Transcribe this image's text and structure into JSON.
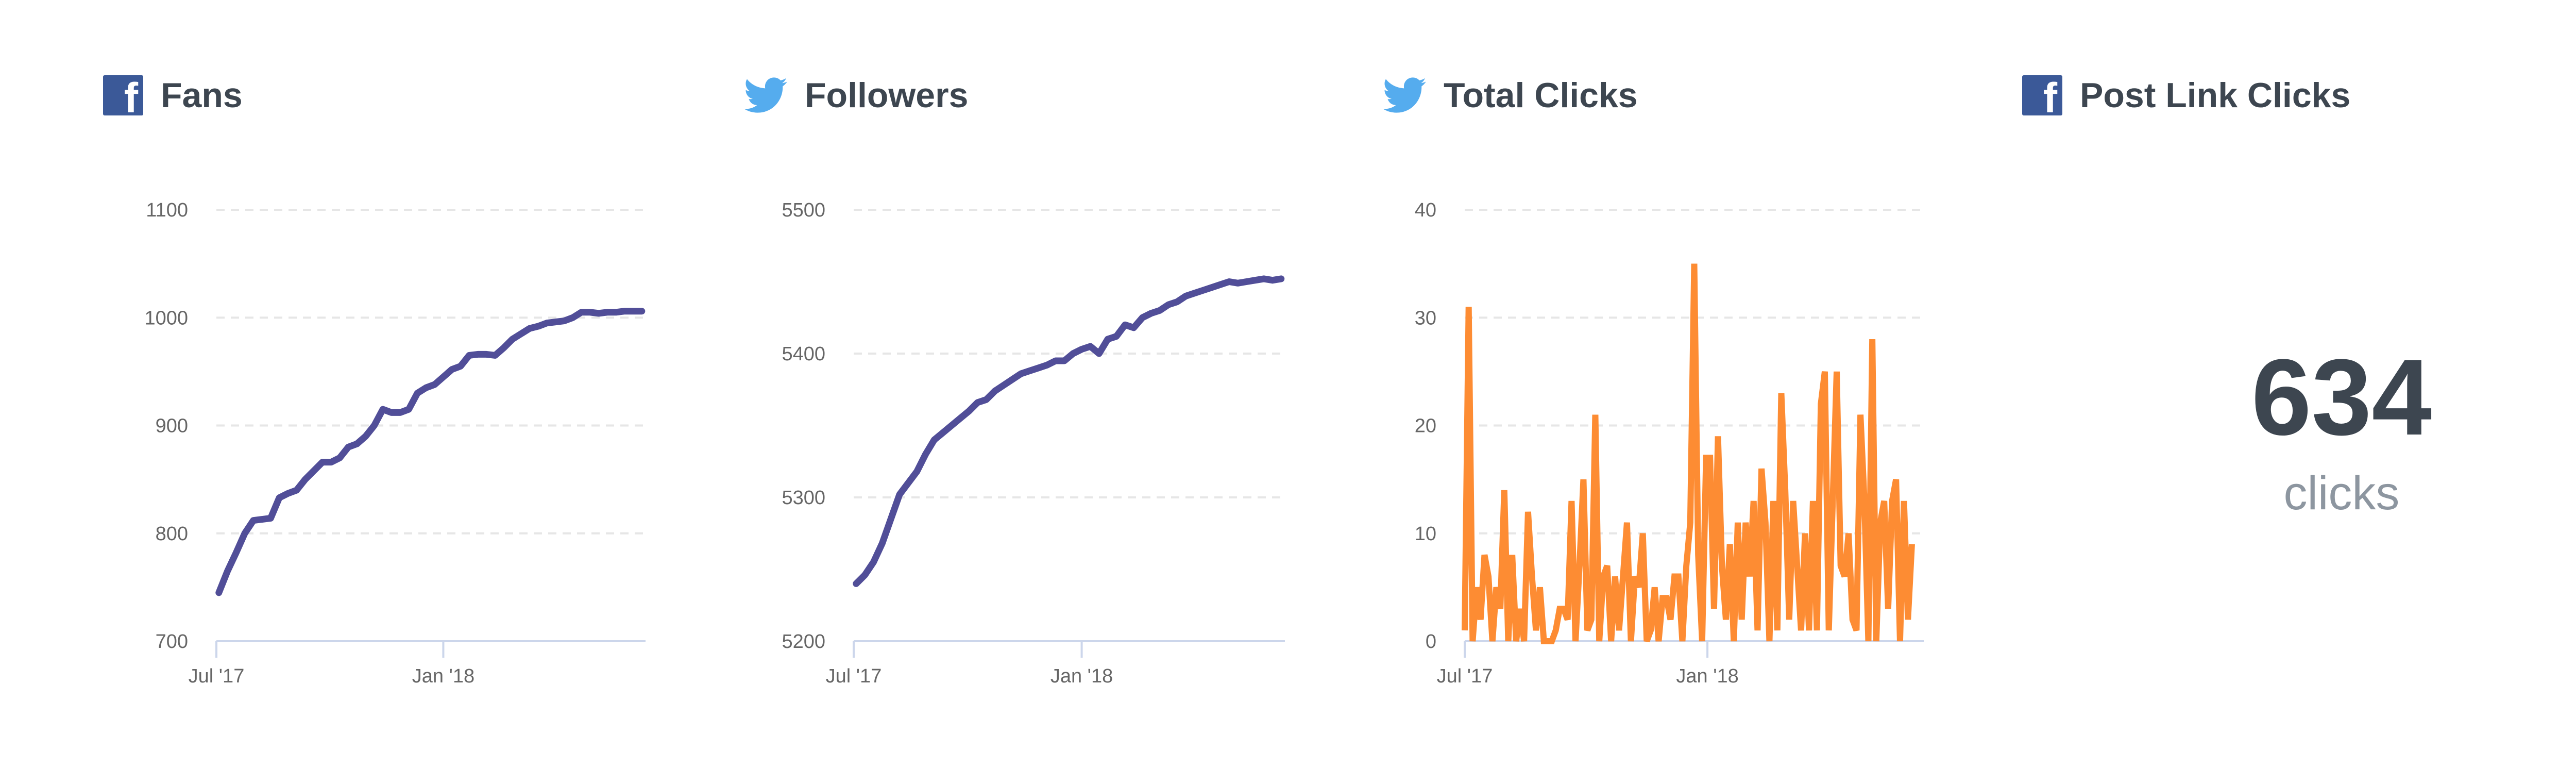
{
  "colors": {
    "facebook": "#3b5998",
    "twitter": "#55acee",
    "line": "#514e98",
    "clicks": "#fd8c33",
    "grid": "#e6e6e6",
    "axis": "#ccd6eb",
    "tick_text": "#666666"
  },
  "panels": [
    {
      "title": "Fans",
      "icon": "facebook-icon"
    },
    {
      "title": "Followers",
      "icon": "twitter-icon"
    },
    {
      "title": "Total Clicks",
      "icon": "twitter-icon"
    },
    {
      "title": "Post Link Clicks",
      "icon": "facebook-icon"
    }
  ],
  "post_link_clicks": {
    "value": "634",
    "unit": "clicks"
  },
  "chart_data": [
    {
      "type": "line",
      "x_start": "2017-07-03",
      "x_step_days": 7,
      "xticks": [
        "Jul '17",
        "Jan '18"
      ],
      "ylim": [
        700,
        1100
      ],
      "yticks": [
        700,
        800,
        900,
        1000,
        1100
      ],
      "grid": true,
      "values": [
        745,
        765,
        782,
        800,
        812,
        813,
        814,
        833,
        837,
        840,
        850,
        858,
        866,
        866,
        870,
        880,
        883,
        890,
        900,
        915,
        912,
        912,
        915,
        930,
        935,
        938,
        945,
        952,
        955,
        965,
        966,
        966,
        965,
        972,
        980,
        985,
        990,
        992,
        995,
        996,
        997,
        1000,
        1005,
        1005,
        1004,
        1005,
        1005,
        1006,
        1006,
        1006
      ]
    },
    {
      "type": "line",
      "x_start": "2017-07-03",
      "x_step_days": 7,
      "xticks": [
        "Jul '17",
        "Jan '18"
      ],
      "ylim": [
        5200,
        5500
      ],
      "yticks": [
        5200,
        5300,
        5400,
        5500
      ],
      "grid": true,
      "values": [
        5240,
        5246,
        5255,
        5268,
        5285,
        5302,
        5310,
        5318,
        5330,
        5340,
        5345,
        5350,
        5355,
        5360,
        5366,
        5368,
        5374,
        5378,
        5382,
        5386,
        5388,
        5390,
        5392,
        5395,
        5395,
        5400,
        5403,
        5405,
        5400,
        5410,
        5412,
        5420,
        5418,
        5425,
        5428,
        5430,
        5434,
        5436,
        5440,
        5442,
        5444,
        5446,
        5448,
        5450,
        5449,
        5450,
        5451,
        5452,
        5451,
        5452
      ]
    },
    {
      "type": "line",
      "x_start": "2017-07-01",
      "x_step_days": 3,
      "xticks": [
        "Jul '17",
        "Jan '18"
      ],
      "ylim": [
        0,
        40
      ],
      "yticks": [
        0,
        10,
        20,
        30,
        40
      ],
      "grid": true,
      "values": [
        1,
        31,
        0,
        5,
        2,
        8,
        6,
        0,
        5,
        3,
        14,
        0,
        8,
        0,
        3,
        0,
        12,
        6,
        1,
        5,
        0,
        0,
        0,
        1,
        3,
        3,
        2,
        13,
        0,
        7,
        15,
        1,
        2,
        21,
        0,
        6,
        7,
        0,
        6,
        1,
        6,
        11,
        0,
        6,
        5,
        10,
        0,
        1,
        5,
        0,
        4,
        4,
        2,
        6,
        6,
        0,
        7,
        11,
        35,
        8,
        0,
        17,
        17,
        3,
        19,
        7,
        2,
        9,
        0,
        11,
        2,
        11,
        6,
        13,
        1,
        16,
        11,
        0,
        13,
        1,
        23,
        14,
        2,
        13,
        7,
        1,
        10,
        1,
        13,
        1,
        22,
        25,
        1,
        13,
        25,
        7,
        6,
        10,
        2,
        1,
        21,
        13,
        0,
        28,
        0,
        11,
        13,
        3,
        13,
        15,
        0,
        13,
        2,
        9
      ]
    }
  ]
}
